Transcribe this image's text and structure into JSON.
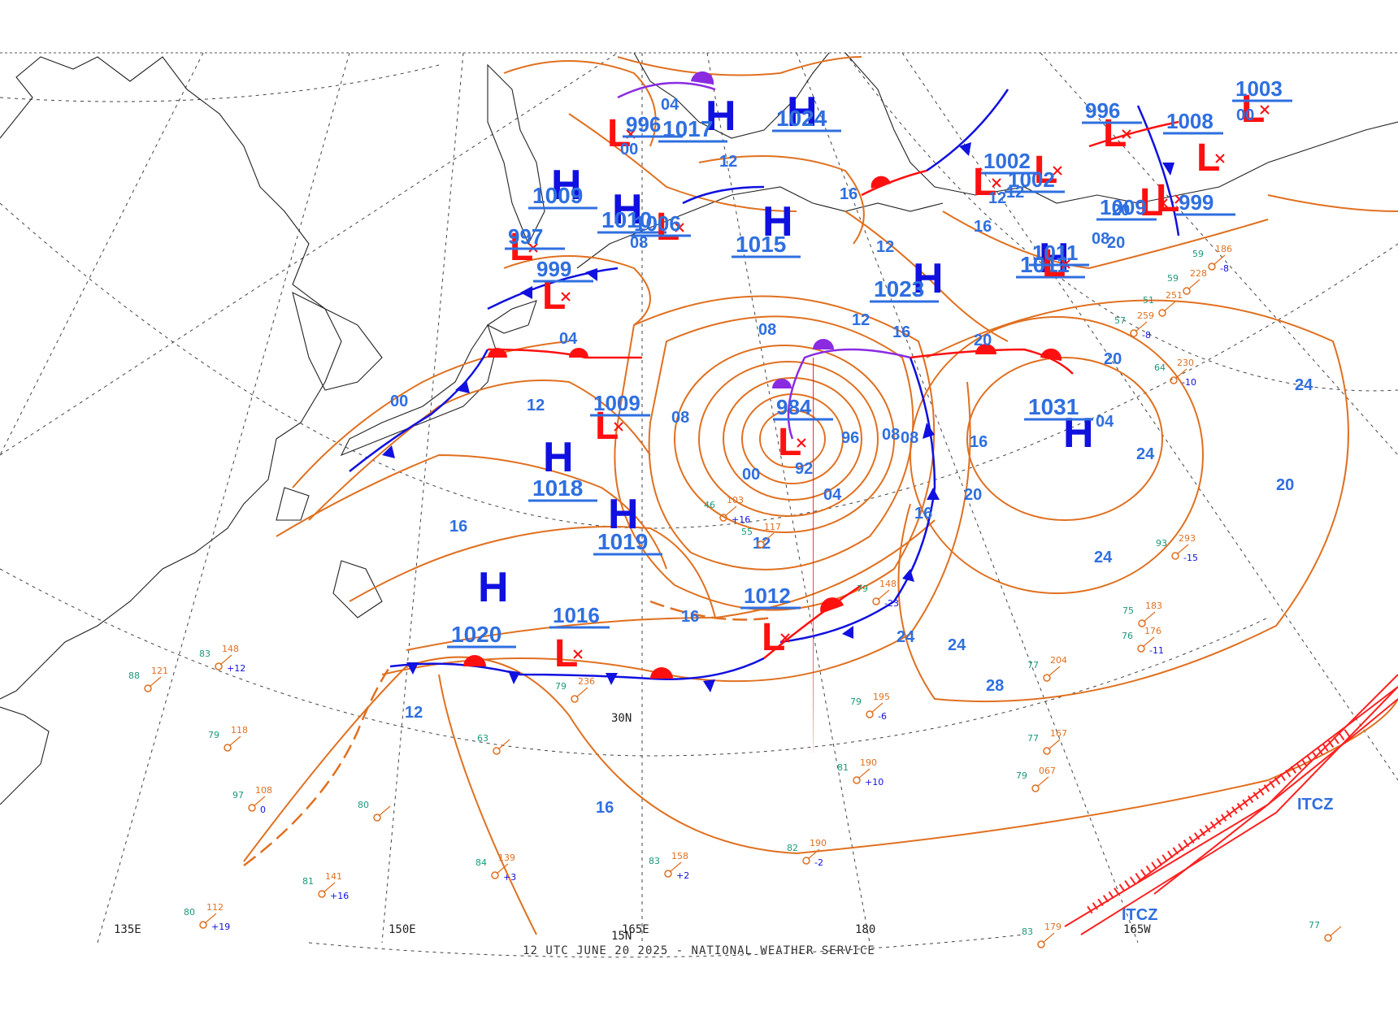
{
  "footer": "12 UTC JUNE 20 2025 - NATIONAL WEATHER SERVICE",
  "colors": {
    "isobar": "#e07020",
    "high": "#1010e0",
    "low": "#ff1010",
    "label": "#2f6fe0",
    "occluded": "#8a2be2",
    "itcz": "#ff2020",
    "grid": "#444444",
    "coast": "#222222"
  },
  "high_centers": [
    {
      "id": "h1",
      "symbol": "H",
      "pressure": "1017"
    },
    {
      "id": "h2",
      "symbol": "H",
      "pressure": "1024"
    },
    {
      "id": "h3",
      "symbol": "H",
      "pressure": "1010"
    },
    {
      "id": "h4",
      "symbol": "H",
      "pressure": "1009"
    },
    {
      "id": "h5",
      "symbol": "H",
      "pressure": "1015"
    },
    {
      "id": "h6",
      "symbol": "H",
      "pressure": "1023"
    },
    {
      "id": "h7",
      "symbol": "H",
      "pressure": "1018"
    },
    {
      "id": "h8",
      "symbol": "H",
      "pressure": "1019"
    },
    {
      "id": "h9",
      "symbol": "H",
      "pressure": "1020"
    },
    {
      "id": "h10",
      "symbol": "H",
      "pressure": "1031"
    },
    {
      "id": "h11",
      "symbol": "H",
      "pressure": "1011"
    }
  ],
  "low_centers": [
    {
      "id": "l1",
      "symbol": "L",
      "pressure": "996"
    },
    {
      "id": "l2",
      "symbol": "L",
      "pressure": "997"
    },
    {
      "id": "l3",
      "symbol": "L",
      "pressure": "999"
    },
    {
      "id": "l4",
      "symbol": "L",
      "pressure": "1006"
    },
    {
      "id": "l5",
      "symbol": "L",
      "pressure": "1009"
    },
    {
      "id": "l6",
      "symbol": "L",
      "pressure": "984"
    },
    {
      "id": "l7",
      "symbol": "L",
      "pressure": "1016"
    },
    {
      "id": "l8",
      "symbol": "L",
      "pressure": "1012"
    },
    {
      "id": "l9",
      "symbol": "L",
      "pressure": "1002"
    },
    {
      "id": "l10",
      "symbol": "L",
      "pressure": "1002"
    },
    {
      "id": "l11",
      "symbol": "L",
      "pressure": "996"
    },
    {
      "id": "l12",
      "symbol": "L",
      "pressure": "1008"
    },
    {
      "id": "l13",
      "symbol": "L",
      "pressure": "1003"
    },
    {
      "id": "l14",
      "symbol": "L",
      "pressure": "1009"
    },
    {
      "id": "l15",
      "symbol": "L",
      "pressure": "999"
    },
    {
      "id": "l16",
      "symbol": "L",
      "pressure": "1011"
    }
  ],
  "contour_labels": [
    "04",
    "00",
    "12",
    "08",
    "16",
    "16",
    "12",
    "12",
    "08",
    "04",
    "00",
    "12",
    "08",
    "08",
    "96",
    "92",
    "00",
    "04",
    "08",
    "16",
    "16",
    "12",
    "16",
    "20",
    "20",
    "24",
    "24",
    "24",
    "28",
    "24",
    "20",
    "20",
    "20",
    "16",
    "12",
    "20",
    "12",
    "16",
    "04",
    "08",
    "12",
    "16",
    "24",
    "00"
  ],
  "geo_labels": {
    "lon_150e": "150E",
    "lon_165e": "165E",
    "lon_180": "180",
    "lon_165w": "165W",
    "lon_135e": "135E",
    "lat_30n": "30N",
    "lat_15n": "15N",
    "itcz_1": "ITCZ",
    "itcz_2": "ITCZ"
  },
  "ship_obs": [
    {
      "t": "83",
      "p": "148",
      "c": "+12"
    },
    {
      "t": "88",
      "p": "121",
      "c": ""
    },
    {
      "t": "79",
      "p": "118",
      "c": ""
    },
    {
      "t": "97",
      "p": "108",
      "c": "0"
    },
    {
      "t": "80",
      "p": "112",
      "c": "+19"
    },
    {
      "t": "81",
      "p": "141",
      "c": "+16"
    },
    {
      "t": "84",
      "p": "139",
      "c": "+3"
    },
    {
      "t": "83",
      "p": "158",
      "c": "+2"
    },
    {
      "t": "82",
      "p": "190",
      "c": "-2"
    },
    {
      "t": "81",
      "p": "190",
      "c": "+10"
    },
    {
      "t": "79",
      "p": "195",
      "c": "-6"
    },
    {
      "t": "79",
      "p": "236",
      "c": ""
    },
    {
      "t": "79",
      "p": "067",
      "c": ""
    },
    {
      "t": "77",
      "p": "204",
      "c": ""
    },
    {
      "t": "77",
      "p": "167",
      "c": ""
    },
    {
      "t": "75",
      "p": "183",
      "c": ""
    },
    {
      "t": "76",
      "p": "176",
      "c": "-11"
    },
    {
      "t": "93",
      "p": "293",
      "c": "-15"
    },
    {
      "t": "64",
      "p": "230",
      "c": "-10"
    },
    {
      "t": "59",
      "p": "186",
      "c": "-8"
    },
    {
      "t": "59",
      "p": "228",
      "c": ""
    },
    {
      "t": "51",
      "p": "251",
      "c": ""
    },
    {
      "t": "57",
      "p": "259",
      "c": "-8"
    },
    {
      "t": "79",
      "p": "148",
      "c": "-23"
    },
    {
      "t": "46",
      "p": "103",
      "c": "+16"
    },
    {
      "t": "55",
      "p": "117",
      "c": ""
    },
    {
      "t": "83",
      "p": "179",
      "c": ""
    },
    {
      "t": "63",
      "p": "",
      "c": ""
    },
    {
      "t": "80",
      "p": "",
      "c": ""
    },
    {
      "t": "77",
      "p": "",
      "c": ""
    }
  ]
}
